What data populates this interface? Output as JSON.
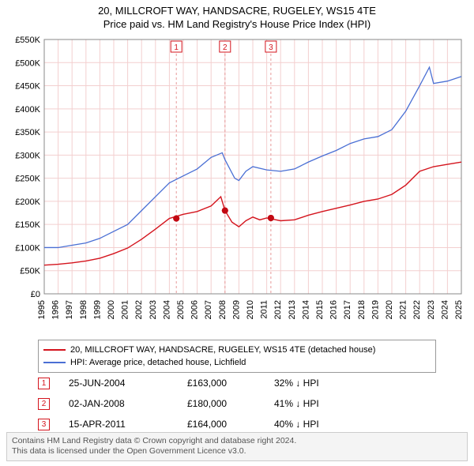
{
  "title_line1": "20, MILLCROFT WAY, HANDSACRE, RUGELEY, WS15 4TE",
  "title_line2": "Price paid vs. HM Land Registry's House Price Index (HPI)",
  "chart": {
    "type": "line",
    "background_color": "#ffffff",
    "grid_color": "#f3cfcf",
    "axis_color": "#888888",
    "label_color": "#000000",
    "label_fontsize": 11,
    "x_years": [
      1995,
      1996,
      1997,
      1998,
      1999,
      2000,
      2001,
      2002,
      2003,
      2004,
      2005,
      2006,
      2007,
      2008,
      2009,
      2010,
      2011,
      2012,
      2013,
      2014,
      2015,
      2016,
      2017,
      2018,
      2019,
      2020,
      2021,
      2022,
      2023,
      2024,
      2025
    ],
    "x_min": 1995,
    "x_max": 2025,
    "y_min": 0,
    "y_max": 550000,
    "y_ticks": [
      0,
      50000,
      100000,
      150000,
      200000,
      250000,
      300000,
      350000,
      400000,
      450000,
      500000,
      550000
    ],
    "y_tick_labels": [
      "£0",
      "£50K",
      "£100K",
      "£150K",
      "£200K",
      "£250K",
      "£300K",
      "£350K",
      "£400K",
      "£450K",
      "£500K",
      "£550K"
    ],
    "series": [
      {
        "name": "price_paid",
        "color": "#d4141d",
        "line_width": 1.4,
        "points": [
          [
            1995,
            62000
          ],
          [
            1996,
            64000
          ],
          [
            1997,
            67000
          ],
          [
            1998,
            71000
          ],
          [
            1999,
            77000
          ],
          [
            2000,
            87000
          ],
          [
            2001,
            99000
          ],
          [
            2002,
            118000
          ],
          [
            2003,
            140000
          ],
          [
            2004,
            163000
          ],
          [
            2005,
            172000
          ],
          [
            2006,
            178000
          ],
          [
            2007,
            190000
          ],
          [
            2007.7,
            210000
          ],
          [
            2008,
            180000
          ],
          [
            2008.5,
            155000
          ],
          [
            2009,
            145000
          ],
          [
            2009.5,
            158000
          ],
          [
            2010,
            166000
          ],
          [
            2010.5,
            160000
          ],
          [
            2011,
            164000
          ],
          [
            2012,
            158000
          ],
          [
            2013,
            160000
          ],
          [
            2014,
            170000
          ],
          [
            2015,
            178000
          ],
          [
            2016,
            185000
          ],
          [
            2017,
            192000
          ],
          [
            2018,
            200000
          ],
          [
            2019,
            205000
          ],
          [
            2020,
            215000
          ],
          [
            2021,
            235000
          ],
          [
            2022,
            265000
          ],
          [
            2023,
            275000
          ],
          [
            2024,
            280000
          ],
          [
            2025,
            285000
          ]
        ]
      },
      {
        "name": "hpi",
        "color": "#4a6fd4",
        "line_width": 1.3,
        "points": [
          [
            1995,
            100000
          ],
          [
            1996,
            100000
          ],
          [
            1997,
            105000
          ],
          [
            1998,
            110000
          ],
          [
            1999,
            120000
          ],
          [
            2000,
            135000
          ],
          [
            2001,
            150000
          ],
          [
            2002,
            180000
          ],
          [
            2003,
            210000
          ],
          [
            2004,
            240000
          ],
          [
            2005,
            255000
          ],
          [
            2006,
            270000
          ],
          [
            2007,
            295000
          ],
          [
            2007.8,
            305000
          ],
          [
            2008,
            290000
          ],
          [
            2008.7,
            250000
          ],
          [
            2009,
            245000
          ],
          [
            2009.5,
            265000
          ],
          [
            2010,
            275000
          ],
          [
            2011,
            268000
          ],
          [
            2012,
            265000
          ],
          [
            2013,
            270000
          ],
          [
            2014,
            285000
          ],
          [
            2015,
            298000
          ],
          [
            2016,
            310000
          ],
          [
            2017,
            325000
          ],
          [
            2018,
            335000
          ],
          [
            2019,
            340000
          ],
          [
            2020,
            355000
          ],
          [
            2021,
            395000
          ],
          [
            2022,
            450000
          ],
          [
            2022.7,
            490000
          ],
          [
            2023,
            455000
          ],
          [
            2024,
            460000
          ],
          [
            2025,
            470000
          ]
        ]
      }
    ],
    "sale_markers": [
      {
        "num": "1",
        "year": 2004.5,
        "value": 163000,
        "color": "#d4141d"
      },
      {
        "num": "2",
        "year": 2008.0,
        "value": 180000,
        "color": "#d4141d"
      },
      {
        "num": "3",
        "year": 2011.3,
        "value": 164000,
        "color": "#d4141d"
      }
    ],
    "marker_dashline_color": "#e69a9a",
    "marker_dot_color": "#c20812"
  },
  "legend": {
    "border_color": "#999999",
    "items": [
      {
        "color": "#d4141d",
        "label": "20, MILLCROFT WAY, HANDSACRE, RUGELEY, WS15 4TE (detached house)"
      },
      {
        "color": "#4a6fd4",
        "label": "HPI: Average price, detached house, Lichfield"
      }
    ]
  },
  "sales": [
    {
      "num": "1",
      "date": "25-JUN-2004",
      "price": "£163,000",
      "pct": "32% ↓ HPI",
      "marker_color": "#d4141d"
    },
    {
      "num": "2",
      "date": "02-JAN-2008",
      "price": "£180,000",
      "pct": "41% ↓ HPI",
      "marker_color": "#d4141d"
    },
    {
      "num": "3",
      "date": "15-APR-2011",
      "price": "£164,000",
      "pct": "40% ↓ HPI",
      "marker_color": "#d4141d"
    }
  ],
  "footer": {
    "line1": "Contains HM Land Registry data © Crown copyright and database right 2024.",
    "line2": "This data is licensed under the Open Government Licence v3.0.",
    "bg": "#f4f4f4",
    "border": "#cccccc",
    "color": "#555555"
  }
}
